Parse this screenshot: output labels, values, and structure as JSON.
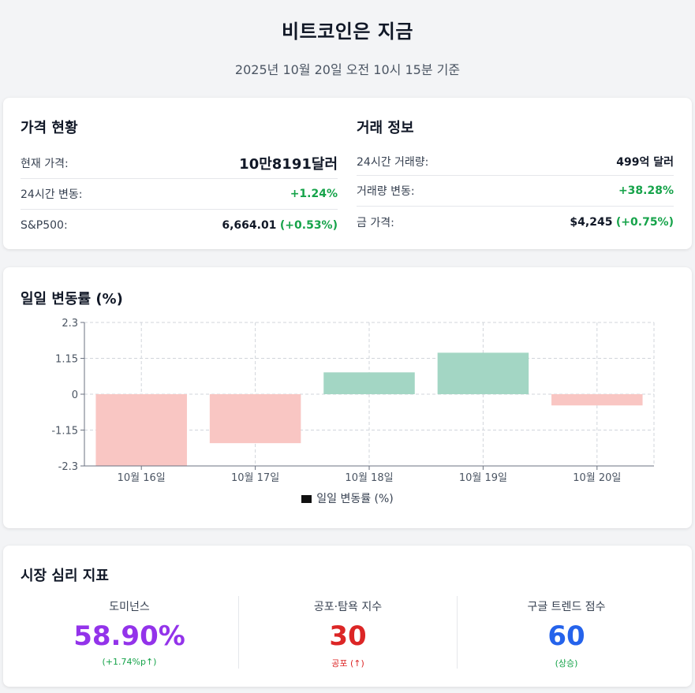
{
  "header": {
    "title": "비트코인은 지금",
    "subtitle": "2025년 10월 20일 오전 10시 15분 기준"
  },
  "price_status": {
    "title": "가격 현황",
    "rows": [
      {
        "label": "현재 가격:",
        "value": "10만8191달러"
      },
      {
        "label": "24시간 변동:",
        "value": "+1.24%"
      },
      {
        "label": "S&P500:",
        "value": "6,664.01",
        "change": "(+0.53%)"
      }
    ]
  },
  "trade_info": {
    "title": "거래 정보",
    "rows": [
      {
        "label": "24시간 거래량:",
        "value": "499억 달러"
      },
      {
        "label": "거래량 변동:",
        "value": "+38.28%"
      },
      {
        "label": "금 가격:",
        "value": "$4,245",
        "change": "(+0.75%)"
      }
    ]
  },
  "chart_section": {
    "title": "일일 변동률 (%)"
  },
  "chart_data": {
    "type": "bar",
    "categories": [
      "10월 16일",
      "10월 17일",
      "10월 18일",
      "10월 19일",
      "10월 20일"
    ],
    "series": [
      {
        "name": "일일 변동률 (%)",
        "values": [
          -2.3,
          -1.57,
          0.7,
          1.33,
          -0.36
        ]
      }
    ],
    "yticks": [
      "2.3",
      "1.15",
      "0",
      "-1.15",
      "-2.3"
    ],
    "ylim": [
      -2.3,
      2.3
    ],
    "grid": true,
    "legend": "bottom",
    "colors": {
      "positive": "#a3d6c4",
      "negative": "#f9c6c3"
    }
  },
  "sentiment": {
    "title": "시장 심리 지표",
    "items": [
      {
        "label": "도미넌스",
        "value": "58.90%",
        "sub": "(+1.74%p↑)",
        "color": "#9333ea",
        "sub_color": "#16a34a"
      },
      {
        "label": "공포·탐욕 지수",
        "value": "30",
        "sub": "공포 (↑)",
        "color": "#dc2626",
        "sub_color": "#dc2626"
      },
      {
        "label": "구글 트렌드 점수",
        "value": "60",
        "sub": "(상승)",
        "color": "#2563eb",
        "sub_color": "#16a34a"
      }
    ]
  }
}
